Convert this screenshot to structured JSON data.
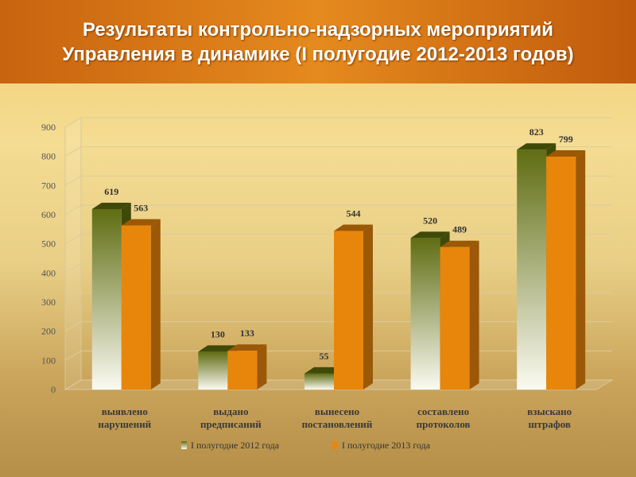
{
  "chart_data": {
    "type": "bar3d",
    "title": "Результаты контрольно-надзорных мероприятий Управления в динамике (I полугодие 2012-2013 годов)",
    "categories": [
      "выявлено нарушений",
      "выдано предписаний",
      "вынесено постановлений",
      "составлено протоколов",
      "взыскано штрафов"
    ],
    "series": [
      {
        "name": "I полугодие 2012 года",
        "color": "#5f6d12",
        "values": [
          619,
          130,
          55,
          520,
          823
        ]
      },
      {
        "name": "I полугодие 2013 года",
        "color": "#e8860c",
        "values": [
          563,
          133,
          544,
          489,
          799
        ]
      }
    ],
    "ylim": [
      0,
      900
    ],
    "yticks": [
      0,
      100,
      200,
      300,
      400,
      500,
      600,
      700,
      800,
      900
    ],
    "grid": true,
    "legend": "bottom"
  }
}
